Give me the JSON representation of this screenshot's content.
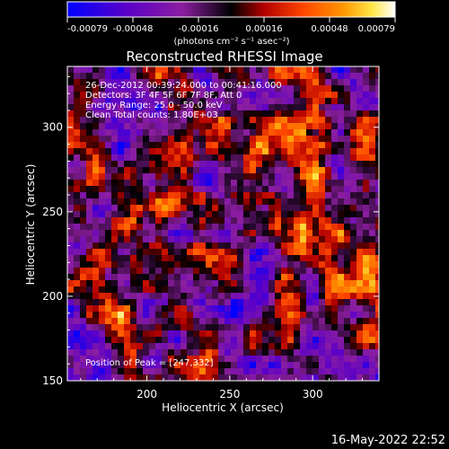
{
  "chart_data": {
    "type": "heatmap",
    "title": "Reconstructed RHESSI Image",
    "colorbar": {
      "ticks": [
        "-0.00079",
        "-0.00048",
        "-0.00016",
        "0.00016",
        "0.00048",
        "0.00079"
      ],
      "unit_label": "(photons cm⁻² s⁻¹ asec⁻²)",
      "range": [
        -0.00079,
        0.00079
      ],
      "colormap": [
        "#0000ff",
        "#5a00c8",
        "#8c1ea0",
        "#000000",
        "#b40000",
        "#ff4600",
        "#ff9600",
        "#ffe646",
        "#ffffff"
      ]
    },
    "xlabel": "Heliocentric X (arcsec)",
    "ylabel": "Heliocentric Y (arcsec)",
    "xlim": [
      152,
      340
    ],
    "ylim": [
      150,
      336
    ],
    "xticks": [
      200,
      250,
      300
    ],
    "yticks": [
      150,
      200,
      250,
      300
    ],
    "info_lines": [
      "26-Dec-2012 00:39:24.000 to 00:41:16.000",
      "Detectors: 3F 4F 5F 6F 7F 8F, Att 0",
      "Energy Range: 25.0 - 50.0 keV",
      "Clean     Total counts: 1.80E+03"
    ],
    "peak_label": "Position of Peak = [247,332]",
    "peak_position": [
      247,
      332
    ],
    "grid": false
  },
  "footer": {
    "timestamp": "16-May-2022 22:52"
  }
}
